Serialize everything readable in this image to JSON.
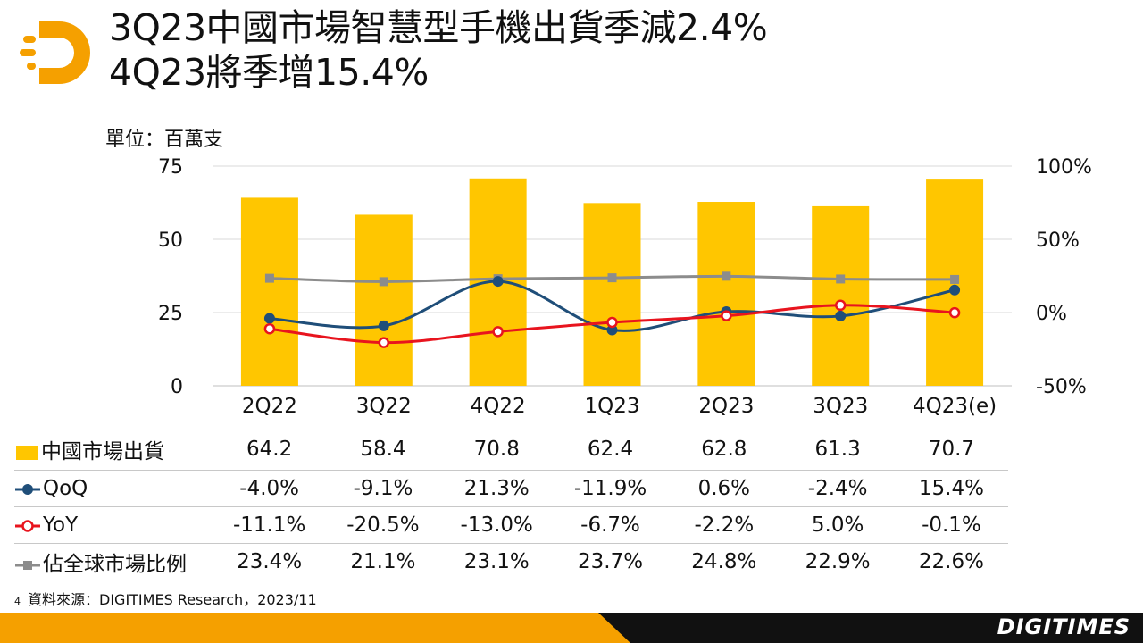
{
  "title_line1": "3Q23中國市場智慧型手機出貨季減2.4%",
  "title_line2": "4Q23將季增15.4%",
  "unit_label": "單位：百萬支",
  "source_page": "4",
  "source_text": "資料來源：DIGITIMES Research，2023/11",
  "brand": "DIGITIMES",
  "colors": {
    "bar": "#FFC600",
    "qoq": "#1F4E79",
    "yoy": "#E8141E",
    "share": "#8C8C8C",
    "footer_orange": "#F5A000",
    "footer_black": "#111111"
  },
  "chart_data": {
    "type": "bar",
    "categories": [
      "2Q22",
      "3Q22",
      "4Q22",
      "1Q23",
      "2Q23",
      "3Q23",
      "4Q23(e)"
    ],
    "y_left": {
      "ticks": [
        "0",
        "25",
        "50",
        "75"
      ],
      "range": [
        0,
        75
      ]
    },
    "y_right": {
      "ticks": [
        "-50%",
        "0%",
        "50%",
        "100%"
      ],
      "range": [
        -50,
        100
      ]
    },
    "grid": true,
    "series": [
      {
        "name": "中國市場出貨",
        "type": "bar",
        "axis": "left",
        "values": [
          64.2,
          58.4,
          70.8,
          62.4,
          62.8,
          61.3,
          70.7
        ],
        "labels": [
          "64.2",
          "58.4",
          "70.8",
          "62.4",
          "62.8",
          "61.3",
          "70.7"
        ]
      },
      {
        "name": "QoQ",
        "type": "line",
        "axis": "right",
        "values": [
          -4.0,
          -9.1,
          21.3,
          -11.9,
          0.6,
          -2.4,
          15.4
        ],
        "labels": [
          "-4.0%",
          "-9.1%",
          "21.3%",
          "-11.9%",
          "0.6%",
          "-2.4%",
          "15.4%"
        ]
      },
      {
        "name": "YoY",
        "type": "line",
        "axis": "right",
        "values": [
          -11.1,
          -20.5,
          -13.0,
          -6.7,
          -2.2,
          5.0,
          -0.1
        ],
        "labels": [
          "-11.1%",
          "-20.5%",
          "-13.0%",
          "-6.7%",
          "-2.2%",
          "5.0%",
          "-0.1%"
        ]
      },
      {
        "name": "佔全球市場比例",
        "type": "line",
        "axis": "right",
        "values": [
          23.4,
          21.1,
          23.1,
          23.7,
          24.8,
          22.9,
          22.6
        ],
        "labels": [
          "23.4%",
          "21.1%",
          "23.1%",
          "23.7%",
          "24.8%",
          "22.9%",
          "22.6%"
        ]
      }
    ]
  }
}
